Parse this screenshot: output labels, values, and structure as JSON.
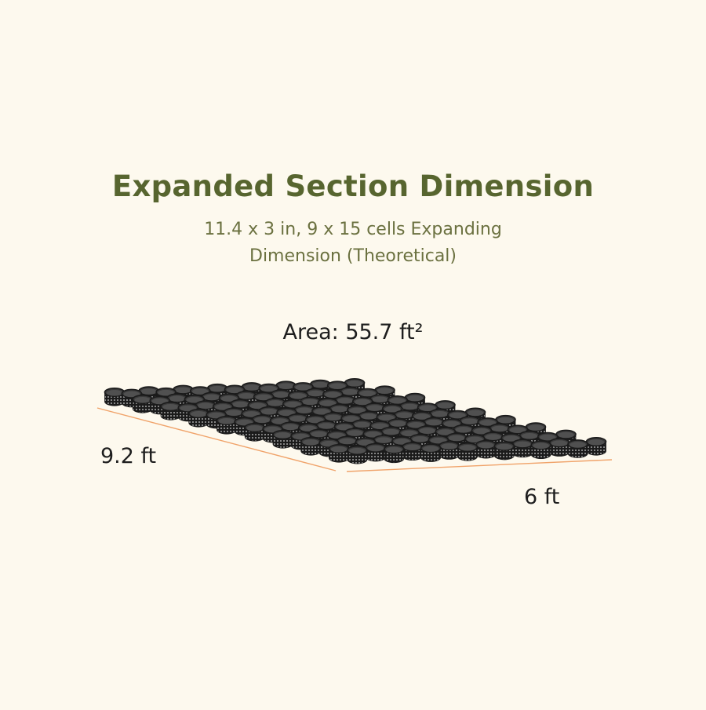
{
  "title": "Expanded Section Dimension",
  "subtitle": "11.4 x 3 in, 9 x 15 cells Expanding Dimension (Theoretical)",
  "area_label": "Area: 55.7 ft²",
  "depth_label": "9.2 ft",
  "width_label": "6 ft",
  "grid": {
    "rows": 9,
    "columns": 15
  },
  "colors": {
    "background": "#fdf9ee",
    "title": "#57652f",
    "cell_side": "#1b1b1b",
    "cell_top": "#3a3a3a",
    "perforation": "#cfcfcf",
    "dimension_line": "#f0a36a"
  }
}
